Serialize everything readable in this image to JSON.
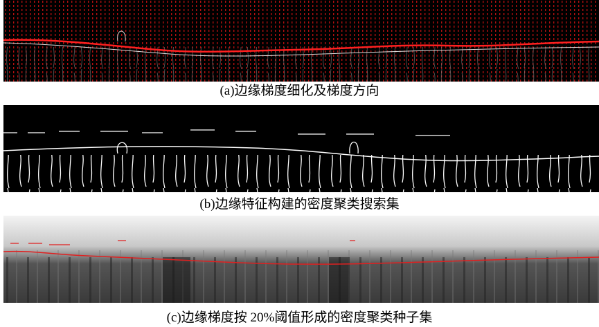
{
  "figure": {
    "panels": [
      {
        "caption": "(a)边缘梯度细化及梯度方向"
      },
      {
        "caption": "(b)边缘特征构建的密度聚类搜索集"
      },
      {
        "caption": "(c)边缘梯度按 20%阈值形成的密度聚类种子集"
      }
    ]
  }
}
